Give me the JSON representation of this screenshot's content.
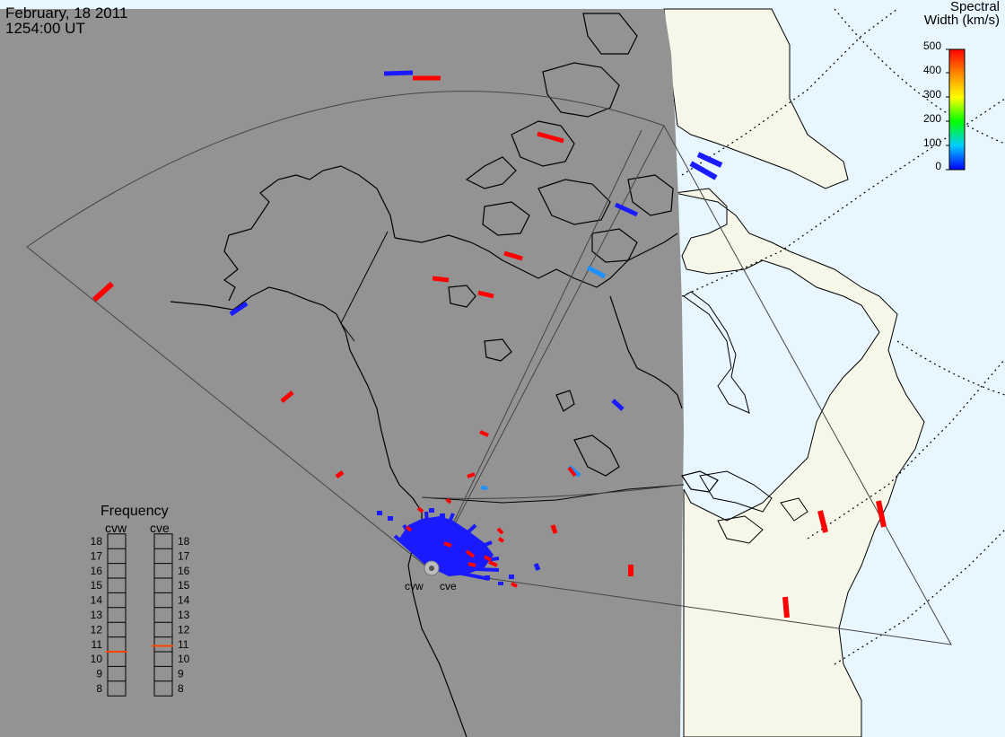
{
  "header": {
    "date": "February, 18 2011",
    "time": "1254:00 UT"
  },
  "colorbar": {
    "title_line1": "Spectral",
    "title_line2": "Width (km/s)",
    "ticks": [
      "500",
      "400",
      "300",
      "200",
      "100",
      "0"
    ]
  },
  "frequency_panel": {
    "title": "Frequency",
    "radars": [
      {
        "name": "cvw",
        "selected_mhz": 10.5
      },
      {
        "name": "cve",
        "selected_mhz": 10.9
      }
    ],
    "ticks": [
      "18",
      "17",
      "16",
      "15",
      "14",
      "13",
      "12",
      "11",
      "10",
      "9",
      "8"
    ]
  },
  "radar_labels": [
    "cvw",
    "cve"
  ],
  "colors": {
    "night_shade": "#939393",
    "land_day": "#f7f7e9",
    "ocean_day": "#e8f6ff",
    "high_width": "#ff0000",
    "low_width": "#1a1aff",
    "mid_width": "#1e90ff",
    "freq_marker": "#ff4500"
  }
}
